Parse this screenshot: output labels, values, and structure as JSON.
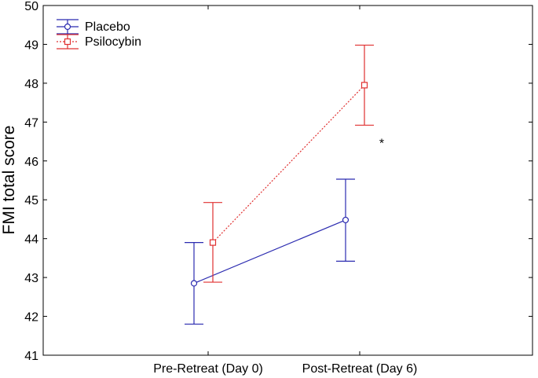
{
  "chart_data": {
    "type": "line",
    "categories": [
      "Pre-Retreat (Day 0)",
      "Post-Retreat (Day 6)"
    ],
    "ylabel": "FMI total score",
    "ylim": [
      41,
      50
    ],
    "yticks": [
      "41",
      "42",
      "43",
      "44",
      "45",
      "46",
      "47",
      "48",
      "49",
      "50"
    ],
    "grid": false,
    "legend_position": "top-left",
    "series": [
      {
        "name": "Placebo",
        "color": "#2b2bb0",
        "marker": "circle",
        "line_style": "solid",
        "values": [
          42.85,
          44.48
        ],
        "error_low": [
          41.8,
          43.42
        ],
        "error_high": [
          43.9,
          45.53
        ]
      },
      {
        "name": "Psilocybin",
        "color": "#e03030",
        "marker": "square",
        "line_style": "dotted",
        "values": [
          43.9,
          47.95
        ],
        "error_low": [
          42.88,
          46.92
        ],
        "error_high": [
          44.93,
          48.98
        ]
      }
    ],
    "annotations": [
      {
        "text": "*",
        "category": "Post-Retreat (Day 6)",
        "y": 46.45
      }
    ]
  }
}
